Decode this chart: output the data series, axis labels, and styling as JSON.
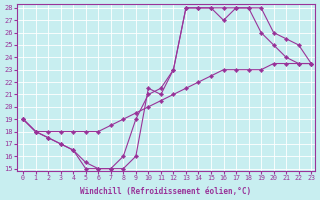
{
  "xlabel": "Windchill (Refroidissement éolien,°C)",
  "bg_color": "#c8eef0",
  "line_color": "#993399",
  "xlim": [
    -0.5,
    23.3
  ],
  "ylim": [
    14.8,
    28.3
  ],
  "xticks": [
    0,
    1,
    2,
    3,
    4,
    5,
    6,
    7,
    8,
    9,
    10,
    11,
    12,
    13,
    14,
    15,
    16,
    17,
    18,
    19,
    20,
    21,
    22,
    23
  ],
  "yticks": [
    15,
    16,
    17,
    18,
    19,
    20,
    21,
    22,
    23,
    24,
    25,
    26,
    27,
    28
  ],
  "line1_x": [
    0,
    1,
    2,
    3,
    4,
    5,
    6,
    7,
    8,
    9,
    10,
    11,
    12,
    13,
    14,
    15,
    16,
    17,
    18,
    19,
    20,
    21,
    22,
    23
  ],
  "line1_y": [
    19,
    18,
    17.5,
    17,
    16.5,
    15,
    15,
    15,
    16,
    19,
    21,
    21.5,
    23,
    28,
    28,
    28,
    28,
    28,
    28,
    26,
    25,
    24,
    23.5,
    23.5
  ],
  "line2_x": [
    0,
    1,
    2,
    3,
    4,
    5,
    6,
    7,
    8,
    9,
    10,
    11,
    12,
    13,
    14,
    15,
    16,
    17,
    18,
    19,
    20,
    21,
    22,
    23
  ],
  "line2_y": [
    19,
    18,
    18,
    18,
    18,
    18,
    18,
    18.5,
    19,
    19.5,
    20,
    20.5,
    21,
    21.5,
    22,
    22.5,
    23,
    23,
    23,
    23,
    23.5,
    23.5,
    23.5,
    23.5
  ],
  "line3_x": [
    0,
    1,
    2,
    3,
    4,
    5,
    6,
    7,
    8,
    9,
    10,
    11,
    12,
    13,
    14,
    15,
    16,
    17,
    18,
    19,
    20,
    21,
    22,
    23
  ],
  "line3_y": [
    19,
    18,
    17.5,
    17,
    16.5,
    15.5,
    15,
    15,
    15,
    16,
    21.5,
    21,
    23,
    28,
    28,
    28,
    27,
    28,
    28,
    28,
    26,
    25.5,
    25,
    23.5
  ]
}
